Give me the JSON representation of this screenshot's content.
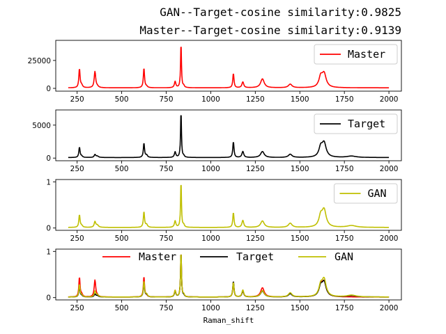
{
  "figure": {
    "title_lines": [
      "GAN--Target-cosine similarity:0.9825",
      "Master--Target-cosine similarity:0.9139"
    ]
  },
  "colors": {
    "Master": "#ff0000",
    "Target": "#000000",
    "GAN": "#bfbf00"
  },
  "peaks": [
    {
      "x": 263,
      "w": 4,
      "Master": 0.42,
      "Target": 0.22,
      "GAN": 0.27
    },
    {
      "x": 275,
      "w": 6,
      "Master": 0.06,
      "Target": 0.03,
      "GAN": 0.04
    },
    {
      "x": 350,
      "w": 5,
      "Master": 0.36,
      "Target": 0.06,
      "GAN": 0.12
    },
    {
      "x": 363,
      "w": 8,
      "Master": 0.03,
      "Target": 0.03,
      "GAN": 0.05
    },
    {
      "x": 625,
      "w": 4,
      "Master": 0.44,
      "Target": 0.31,
      "GAN": 0.34
    },
    {
      "x": 640,
      "w": 6,
      "Master": 0.03,
      "Target": 0.05,
      "GAN": 0.06
    },
    {
      "x": 800,
      "w": 5,
      "Master": 0.14,
      "Target": 0.12,
      "GAN": 0.14
    },
    {
      "x": 833,
      "w": 3,
      "Master": 1.0,
      "Target": 1.0,
      "GAN": 1.0
    },
    {
      "x": 848,
      "w": 5,
      "Master": 0.04,
      "Target": 0.03,
      "GAN": 0.05
    },
    {
      "x": 1127,
      "w": 4,
      "Master": 0.32,
      "Target": 0.34,
      "GAN": 0.32
    },
    {
      "x": 1180,
      "w": 6,
      "Master": 0.13,
      "Target": 0.13,
      "GAN": 0.15
    },
    {
      "x": 1290,
      "w": 12,
      "Master": 0.2,
      "Target": 0.13,
      "GAN": 0.14
    },
    {
      "x": 1446,
      "w": 12,
      "Master": 0.08,
      "Target": 0.07,
      "GAN": 0.09
    },
    {
      "x": 1617,
      "w": 12,
      "Master": 0.22,
      "Target": 0.2,
      "GAN": 0.22
    },
    {
      "x": 1636,
      "w": 14,
      "Master": 0.3,
      "Target": 0.3,
      "GAN": 0.36
    },
    {
      "x": 1790,
      "w": 30,
      "Master": 0.0,
      "Target": 0.03,
      "GAN": 0.04
    }
  ],
  "chart_data": [
    {
      "type": "line",
      "series": [
        {
          "name": "Master"
        }
      ],
      "xlim": [
        130,
        2070
      ],
      "ylim": [
        -2500,
        43000
      ],
      "yticks": [
        0,
        25000
      ],
      "xticks": [
        250,
        500,
        750,
        1000,
        1250,
        1500,
        1750,
        2000
      ],
      "y_scale": 40000,
      "xlabel": "",
      "legend": "top-right"
    },
    {
      "type": "line",
      "series": [
        {
          "name": "Target"
        }
      ],
      "xlim": [
        130,
        2070
      ],
      "ylim": [
        -400,
        7300
      ],
      "yticks": [
        0,
        5000
      ],
      "xticks": [
        250,
        500,
        750,
        1000,
        1250,
        1500,
        1750,
        2000
      ],
      "y_scale": 7000,
      "xlabel": "",
      "legend": "top-right"
    },
    {
      "type": "line",
      "series": [
        {
          "name": "GAN"
        }
      ],
      "xlim": [
        130,
        2070
      ],
      "ylim": [
        -0.05,
        1.05
      ],
      "yticks": [
        0,
        1
      ],
      "xticks": [
        250,
        500,
        750,
        1000,
        1250,
        1500,
        1750,
        2000
      ],
      "y_scale": 1,
      "xlabel": "",
      "legend": "top-right"
    },
    {
      "type": "line",
      "series": [
        {
          "name": "Master"
        },
        {
          "name": "Target"
        },
        {
          "name": "GAN"
        }
      ],
      "xlim": [
        130,
        2070
      ],
      "ylim": [
        -0.05,
        1.05
      ],
      "yticks": [
        0,
        1
      ],
      "xticks": [
        250,
        500,
        750,
        1000,
        1250,
        1500,
        1750,
        2000
      ],
      "y_scale": 1,
      "xlabel": "Raman_shift",
      "legend": "top-center"
    }
  ]
}
